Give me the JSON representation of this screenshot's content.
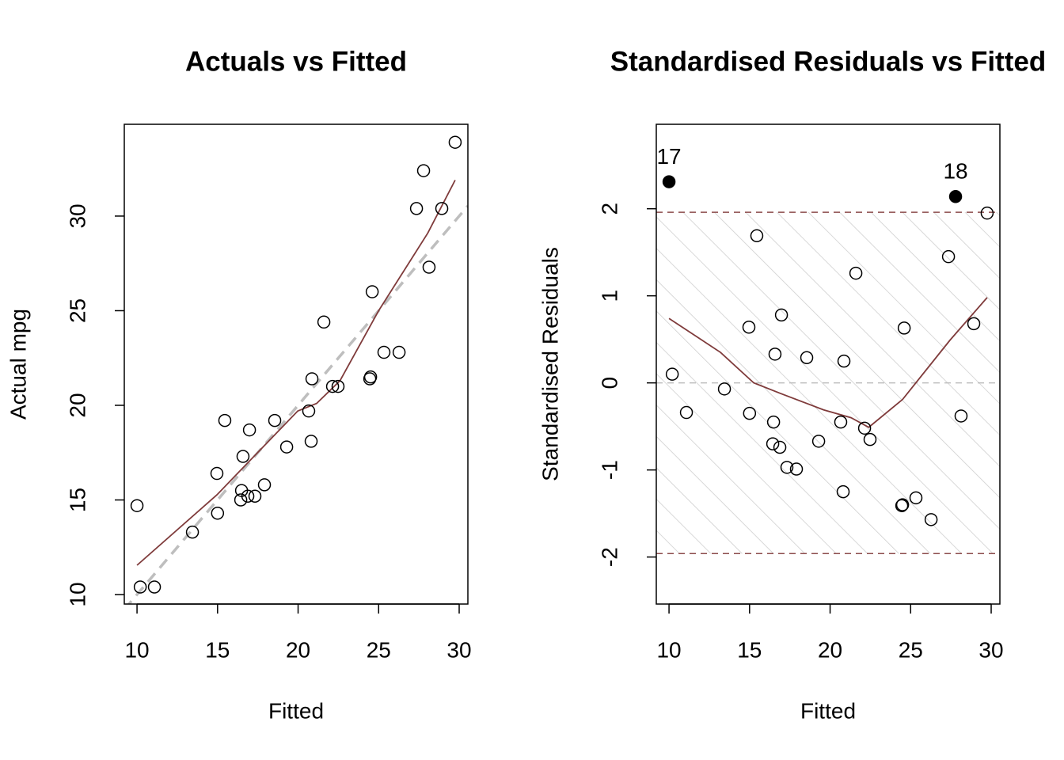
{
  "chart_data": [
    {
      "type": "scatter",
      "title": "Actuals vs Fitted",
      "x_label": "Fitted",
      "y_label": "Actual mpg",
      "xlim": [
        9.21,
        30.54
      ],
      "ylim": [
        9.5,
        34.85
      ],
      "xticks": [
        10,
        15,
        20,
        25,
        30
      ],
      "yticks": [
        10,
        15,
        20,
        25,
        30
      ],
      "x": [
        10.0,
        10.2,
        11.08,
        13.44,
        14.96,
        15.0,
        15.45,
        16.44,
        16.49,
        16.58,
        16.88,
        16.98,
        17.32,
        17.91,
        18.55,
        19.29,
        20.66,
        20.81,
        20.86,
        21.6,
        22.14,
        22.48,
        24.45,
        24.5,
        24.6,
        25.33,
        26.27,
        27.35,
        27.79,
        28.13,
        28.92,
        29.75
      ],
      "values": [
        14.7,
        10.4,
        10.4,
        13.3,
        16.4,
        14.3,
        19.2,
        15.0,
        15.5,
        17.3,
        15.2,
        18.7,
        15.2,
        15.8,
        19.2,
        17.8,
        19.7,
        18.1,
        21.4,
        24.4,
        21.0,
        21.0,
        21.4,
        21.5,
        26.0,
        22.8,
        22.8,
        30.4,
        32.4,
        27.3,
        30.4,
        33.9
      ],
      "point_color": "#000000",
      "reference_line": {
        "slope": 1,
        "intercept": 0,
        "color": "#bebebe"
      },
      "smooth": {
        "color": "#7f3b3b",
        "x": [
          10,
          14.96,
          16.24,
          19.98,
          21.15,
          22.6,
          25,
          28.05,
          29.75
        ],
        "y": [
          11.55,
          15.27,
          16.4,
          19.7,
          20.1,
          21.3,
          25,
          29.1,
          31.9
        ]
      }
    },
    {
      "type": "scatter",
      "title": "Standardised Residuals vs Fitted",
      "x_label": "Fitted",
      "y_label": "Standardised Residuals",
      "xlim": [
        9.21,
        30.54
      ],
      "ylim": [
        -2.54,
        2.97
      ],
      "xticks": [
        10,
        15,
        20,
        25,
        30
      ],
      "yticks": [
        -2,
        -1,
        0,
        1,
        2
      ],
      "x": [
        10.0,
        10.2,
        11.08,
        13.44,
        14.96,
        15.0,
        15.45,
        16.44,
        16.49,
        16.58,
        16.88,
        16.98,
        17.32,
        17.91,
        18.55,
        19.29,
        20.66,
        20.81,
        20.86,
        21.6,
        22.14,
        22.48,
        24.45,
        24.5,
        24.6,
        25.33,
        26.27,
        27.35,
        27.79,
        28.13,
        28.92,
        29.75
      ],
      "values": [
        2.31,
        0.1,
        -0.34,
        -0.07,
        0.64,
        -0.35,
        1.69,
        -0.7,
        -0.45,
        0.33,
        -0.74,
        0.78,
        -0.97,
        -0.99,
        0.29,
        -0.67,
        -0.45,
        -1.25,
        0.25,
        1.26,
        -0.52,
        -0.65,
        -1.41,
        -1.4,
        0.63,
        -1.32,
        -1.57,
        1.45,
        2.14,
        -0.38,
        0.68,
        1.95
      ],
      "point_labels": [
        "17",
        null,
        null,
        null,
        null,
        null,
        null,
        null,
        null,
        null,
        null,
        null,
        null,
        null,
        null,
        null,
        null,
        null,
        null,
        null,
        null,
        null,
        null,
        null,
        null,
        null,
        null,
        null,
        "18",
        null,
        null,
        null
      ],
      "point_color": "#000000",
      "band": {
        "ylim": [
          -1.96,
          1.96
        ],
        "color": "#8b4a4a",
        "hatch_color": "#cccccc"
      },
      "hlines": [
        {
          "value": 0,
          "color": "#bebebe"
        }
      ],
      "smooth": {
        "color": "#7f3b3b",
        "x": [
          10,
          13.2,
          15.26,
          16.9,
          19.6,
          21.3,
          22.4,
          24.5,
          27.44,
          29.75
        ],
        "y": [
          0.74,
          0.35,
          0.0,
          -0.12,
          -0.31,
          -0.4,
          -0.51,
          -0.19,
          0.49,
          0.98
        ]
      }
    }
  ]
}
